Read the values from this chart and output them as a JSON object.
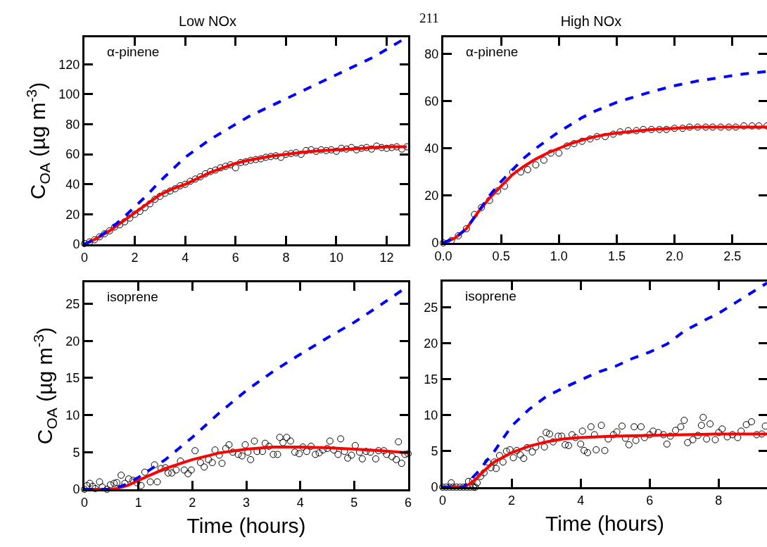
{
  "chart_data": [
    {
      "type": "line",
      "title": "Low NOx",
      "ylabel": "C$_{OA}$ (µg m$^{-3}$)",
      "annotations": [
        "α-pinene"
      ],
      "xlim": [
        0,
        12.85
      ],
      "ylim": [
        0,
        138
      ],
      "xticks": [
        0,
        2,
        4,
        6,
        8,
        10,
        12
      ],
      "yticks": [
        0,
        20,
        40,
        60,
        80,
        100,
        120
      ],
      "series": [
        {
          "type": "scatter",
          "marker": "circle",
          "color": "#000000",
          "x": [
            0,
            0.2,
            0.4,
            0.6,
            0.8,
            1.0,
            1.2,
            1.4,
            1.6,
            1.8,
            2.0,
            2.2,
            2.4,
            2.6,
            2.8,
            3.0,
            3.2,
            3.4,
            3.6,
            3.8,
            4.0,
            4.2,
            4.4,
            4.6,
            4.8,
            5.0,
            5.2,
            5.4,
            5.6,
            5.8,
            6.0,
            6.2,
            6.4,
            6.6,
            6.8,
            7.0,
            7.2,
            7.4,
            7.6,
            7.8,
            8.0,
            8.2,
            8.4,
            8.6,
            8.8,
            9.0,
            9.2,
            9.4,
            9.6,
            9.8,
            10.0,
            10.2,
            10.4,
            10.6,
            10.8,
            11.0,
            11.2,
            11.4,
            11.6,
            11.8,
            12.0,
            12.2,
            12.4,
            12.6,
            12.8
          ],
          "values": [
            0.5,
            1.5,
            3,
            5,
            7,
            9,
            11.5,
            13,
            15,
            17.5,
            20,
            22,
            24.5,
            27,
            30,
            32,
            34,
            35.5,
            37,
            39,
            40,
            42,
            43.5,
            45,
            47,
            48.5,
            49.5,
            51,
            52,
            53,
            51,
            54.5,
            55,
            56,
            56.5,
            57,
            58,
            58.5,
            59,
            58,
            60,
            60.5,
            61,
            60,
            62.5,
            63,
            62,
            63,
            62.5,
            63,
            62,
            64,
            63.5,
            64.5,
            63,
            64,
            64.5,
            63.5,
            65.5,
            64.5,
            64,
            64.5,
            65,
            63.5,
            65
          ]
        },
        {
          "color": "#ff0000",
          "x": [
            0,
            0.5,
            1,
            1.5,
            2,
            2.5,
            3,
            3.5,
            4,
            4.5,
            5,
            5.5,
            6,
            6.5,
            7,
            7.5,
            8,
            8.5,
            9,
            9.5,
            10,
            10.5,
            11,
            11.5,
            12,
            12.5,
            12.8
          ],
          "values": [
            0,
            4,
            9,
            15,
            21,
            27,
            33,
            37,
            40,
            44,
            48,
            51,
            54,
            56,
            57.5,
            59,
            60,
            61,
            62,
            62.5,
            63,
            63.5,
            64,
            64.5,
            65,
            65,
            65
          ]
        },
        {
          "line_style": "dashed",
          "color": "#0000ff",
          "x": [
            0,
            0.5,
            1,
            1.5,
            2,
            2.5,
            3,
            3.5,
            4,
            4.5,
            5,
            5.5,
            6,
            6.5,
            7,
            7.5,
            8,
            8.5,
            9,
            9.5,
            10,
            10.5,
            11,
            11.5,
            12,
            12.5,
            12.8
          ],
          "values": [
            0,
            4,
            10,
            17,
            25,
            33,
            42,
            50,
            58,
            64,
            70,
            75,
            80,
            85,
            89,
            93,
            97,
            101,
            105,
            109,
            113,
            117,
            121,
            125,
            130,
            135,
            138
          ]
        }
      ]
    },
    {
      "type": "line",
      "title": "High NOx",
      "annotations": [
        "α-pinene",
        "211"
      ],
      "xlim": [
        0,
        2.8
      ],
      "ylim": [
        0,
        87
      ],
      "xticks": [
        {
          "value": 0,
          "label": "0.0"
        },
        0.5,
        {
          "value": 1,
          "label": "1.0"
        },
        1.5,
        {
          "value": 2,
          "label": "2.0"
        },
        2.5
      ],
      "yticks": [
        0,
        20,
        40,
        60,
        80
      ],
      "series": [
        {
          "type": "scatter",
          "marker": "circle",
          "color": "#000000",
          "x": [
            0,
            0.07,
            0.13,
            0.2,
            0.27,
            0.33,
            0.4,
            0.47,
            0.53,
            0.6,
            0.67,
            0.73,
            0.8,
            0.87,
            0.93,
            1.0,
            1.07,
            1.13,
            1.2,
            1.27,
            1.33,
            1.4,
            1.47,
            1.53,
            1.6,
            1.67,
            1.73,
            1.8,
            1.87,
            1.93,
            2.0,
            2.07,
            2.13,
            2.2,
            2.27,
            2.33,
            2.4,
            2.47,
            2.53,
            2.6,
            2.67,
            2.73,
            2.8
          ],
          "values": [
            0,
            1,
            3,
            6,
            12,
            15,
            18,
            22,
            24,
            30,
            30,
            31,
            33,
            35,
            38,
            38,
            41,
            42,
            43,
            44,
            45,
            45,
            46,
            47,
            47.5,
            47.5,
            48,
            48,
            48,
            48,
            48.5,
            48.5,
            49,
            49,
            49,
            49,
            49,
            49,
            49,
            49.5,
            49.5,
            49.5,
            49.5
          ]
        },
        {
          "color": "#ff0000",
          "x": [
            0,
            0.1,
            0.2,
            0.3,
            0.4,
            0.5,
            0.6,
            0.7,
            0.8,
            0.9,
            1.0,
            1.1,
            1.2,
            1.3,
            1.4,
            1.5,
            1.6,
            1.8,
            2.0,
            2.2,
            2.5,
            2.8
          ],
          "values": [
            0,
            2,
            6,
            13,
            19,
            24,
            29,
            32.5,
            35.5,
            38,
            40,
            42,
            43.5,
            44.8,
            45.8,
            46.5,
            47,
            48,
            48.5,
            49,
            49,
            49
          ]
        },
        {
          "line_style": "dashed",
          "color": "#0000ff",
          "x": [
            0,
            0.1,
            0.2,
            0.3,
            0.4,
            0.5,
            0.6,
            0.7,
            0.8,
            0.9,
            1.0,
            1.1,
            1.2,
            1.3,
            1.4,
            1.5,
            1.6,
            1.8,
            2.0,
            2.2,
            2.4,
            2.6,
            2.8
          ],
          "values": [
            0,
            2,
            6,
            13,
            20,
            26,
            31,
            36,
            40,
            43.5,
            47,
            50,
            53,
            55.5,
            57.5,
            59.5,
            61,
            64,
            66.5,
            68.5,
            70,
            71.5,
            72.5
          ]
        }
      ]
    },
    {
      "type": "line",
      "xlabel": "Time (hours)",
      "ylabel": "C$_{OA}$ (µg m$^{-3}$)",
      "annotations": [
        "isoprene"
      ],
      "xlim": [
        0,
        6
      ],
      "ylim": [
        0,
        27.9
      ],
      "xticks": [
        0,
        1,
        2,
        3,
        4,
        5,
        6
      ],
      "yticks": [
        0,
        5,
        10,
        15,
        20,
        25
      ],
      "series": [
        {
          "type": "scatter",
          "marker": "circle",
          "color": "#000000",
          "x": [
            0,
            0.05,
            0.1,
            0.15,
            0.2,
            0.28,
            0.33,
            0.42,
            0.48,
            0.55,
            0.6,
            0.68,
            0.75,
            0.82,
            0.9,
            0.97,
            1.05,
            1.12,
            1.22,
            1.3,
            1.35,
            1.42,
            1.5,
            1.55,
            1.62,
            1.7,
            1.78,
            1.85,
            1.92,
            1.98,
            2.05,
            2.15,
            2.22,
            2.3,
            2.37,
            2.42,
            2.5,
            2.55,
            2.62,
            2.68,
            2.75,
            2.85,
            2.92,
            2.98,
            3.03,
            3.08,
            3.15,
            3.2,
            3.3,
            3.35,
            3.42,
            3.5,
            3.58,
            3.62,
            3.68,
            3.75,
            3.82,
            3.9,
            3.98,
            4.05,
            4.12,
            4.2,
            4.28,
            4.35,
            4.42,
            4.5,
            4.55,
            4.62,
            4.7,
            4.75,
            4.82,
            4.88,
            4.95,
            5.02,
            5.1,
            5.15,
            5.22,
            5.3,
            5.4,
            5.45,
            5.55,
            5.6,
            5.7,
            5.78,
            5.82,
            5.88,
            5.94,
            6
          ],
          "values": [
            0,
            0.5,
            0.8,
            0.4,
            0.1,
            1,
            0.3,
            0,
            0.6,
            0.8,
            0.9,
            1.9,
            0.8,
            1.4,
            1.2,
            0.9,
            0.5,
            2.3,
            1,
            3.3,
            1,
            2.8,
            2.9,
            2.2,
            2.2,
            2.6,
            3.8,
            2.6,
            2.1,
            2.6,
            5.2,
            3.6,
            3,
            4,
            3.6,
            5.3,
            4.6,
            3.5,
            5.5,
            6,
            5,
            4.7,
            4.5,
            6,
            5,
            4,
            6.5,
            5.1,
            5.1,
            6.2,
            5.8,
            4.7,
            4.7,
            7,
            6.3,
            7,
            6.5,
            5,
            4.8,
            5.7,
            5.1,
            5.8,
            4.7,
            4.9,
            5.3,
            5.5,
            6.5,
            5.3,
            4.7,
            6.8,
            5.1,
            4.2,
            4.6,
            5.9,
            5,
            4.1,
            5.1,
            5,
            4.1,
            5.2,
            5.2,
            4.7,
            4.4,
            4,
            6.4,
            3.5,
            4.7,
            4.8
          ]
        },
        {
          "color": "#ff0000",
          "x": [
            0,
            0.5,
            0.6,
            0.8,
            1,
            1.25,
            1.5,
            2,
            2.5,
            3,
            3.5,
            4,
            4.5,
            5,
            5.5,
            6
          ],
          "values": [
            0,
            0,
            0.1,
            0.5,
            1.2,
            2,
            2.8,
            4,
            4.9,
            5.4,
            5.7,
            5.7,
            5.6,
            5.4,
            5.2,
            4.9
          ]
        },
        {
          "line_style": "dashed",
          "color": "#0000ff",
          "x": [
            0,
            0.5,
            0.75,
            1,
            1.5,
            2,
            2.5,
            3,
            3.5,
            4,
            4.5,
            5,
            5.5,
            6
          ],
          "values": [
            0,
            0,
            0.6,
            1.6,
            4,
            7,
            10.3,
            13.3,
            15.9,
            18.2,
            20.4,
            22.5,
            24.9,
            27.4
          ]
        }
      ]
    },
    {
      "type": "line",
      "xlabel": "Time (hours)",
      "annotations": [
        "isoprene"
      ],
      "xlim": [
        0,
        9.4
      ],
      "ylim": [
        0,
        28.6
      ],
      "xticks": [
        0,
        2,
        4,
        6,
        8
      ],
      "yticks": [
        0,
        5,
        10,
        15,
        20,
        25
      ],
      "series": [
        {
          "type": "scatter",
          "marker": "circle",
          "color": "#000000",
          "x": [
            0,
            0.1,
            0.2,
            0.25,
            0.3,
            0.4,
            0.5,
            0.6,
            0.7,
            0.75,
            0.8,
            0.87,
            0.9,
            0.95,
            1.0,
            1.1,
            1.2,
            1.3,
            1.4,
            1.5,
            1.55,
            1.65,
            1.75,
            1.85,
            1.95,
            2.05,
            2.15,
            2.25,
            2.35,
            2.45,
            2.6,
            2.7,
            2.85,
            2.95,
            3.0,
            3.1,
            3.2,
            3.35,
            3.45,
            3.55,
            3.65,
            3.75,
            3.85,
            4.0,
            4.05,
            4.1,
            4.2,
            4.3,
            4.4,
            4.45,
            4.6,
            4.7,
            4.8,
            4.95,
            5.05,
            5.2,
            5.3,
            5.4,
            5.55,
            5.6,
            5.75,
            5.85,
            6.0,
            6.1,
            6.25,
            6.4,
            6.5,
            6.6,
            6.75,
            6.9,
            7.0,
            7.1,
            7.25,
            7.4,
            7.5,
            7.55,
            7.65,
            7.75,
            7.9,
            8.0,
            8.1,
            8.25,
            8.4,
            8.55,
            8.65,
            8.8,
            8.95,
            9.1,
            9.25,
            9.35
          ],
          "values": [
            0,
            0,
            0,
            0.6,
            0,
            0,
            0,
            0,
            0,
            0.8,
            0,
            0.9,
            0,
            0,
            0.6,
            1.5,
            2,
            3.5,
            2.7,
            3.5,
            2.6,
            4.4,
            3.5,
            5,
            5.2,
            4.1,
            5.1,
            4.5,
            4,
            5.5,
            4.9,
            5.6,
            6.6,
            5.6,
            7.6,
            7.4,
            6.3,
            7.1,
            7.1,
            5.9,
            5.8,
            7.3,
            6.9,
            6,
            7.8,
            5.1,
            4.8,
            8.4,
            7.3,
            5.2,
            8.6,
            5.1,
            6.7,
            7.3,
            7.7,
            8.5,
            6.8,
            5.9,
            8.4,
            6.5,
            8.4,
            6.9,
            7.3,
            7.8,
            7.6,
            7.3,
            6,
            7.1,
            7.9,
            8.4,
            9.3,
            6.2,
            6.6,
            7.2,
            8.6,
            9.7,
            6.7,
            8.8,
            6.6,
            7.6,
            8.1,
            7,
            7.3,
            6.9,
            7.8,
            8.7,
            9.1,
            7.3,
            7.4,
            8.5
          ]
        },
        {
          "color": "#ff0000",
          "x": [
            0,
            0.6,
            0.8,
            1,
            1.25,
            1.5,
            2,
            2.5,
            3,
            3.5,
            4,
            5,
            6,
            7,
            8,
            9.4
          ],
          "values": [
            0,
            0,
            0.5,
            1.3,
            2.5,
            3.5,
            4.8,
            5.7,
            6.3,
            6.7,
            6.9,
            7.1,
            7.2,
            7.3,
            7.4,
            7.4
          ]
        },
        {
          "line_style": "dashed",
          "color": "#0000ff",
          "x": [
            0,
            0.6,
            0.8,
            1,
            1.5,
            2,
            2.5,
            3,
            3.5,
            4,
            4.5,
            5,
            5.5,
            6,
            6.5,
            7,
            7.5,
            8,
            8.5,
            9,
            9.4
          ],
          "values": [
            0,
            0,
            1,
            2,
            5,
            8.5,
            10.8,
            12.6,
            13.8,
            14.9,
            16,
            16.8,
            17.9,
            18.8,
            19.9,
            21.7,
            23,
            24.2,
            25.7,
            27.2,
            28.4
          ]
        }
      ]
    }
  ]
}
